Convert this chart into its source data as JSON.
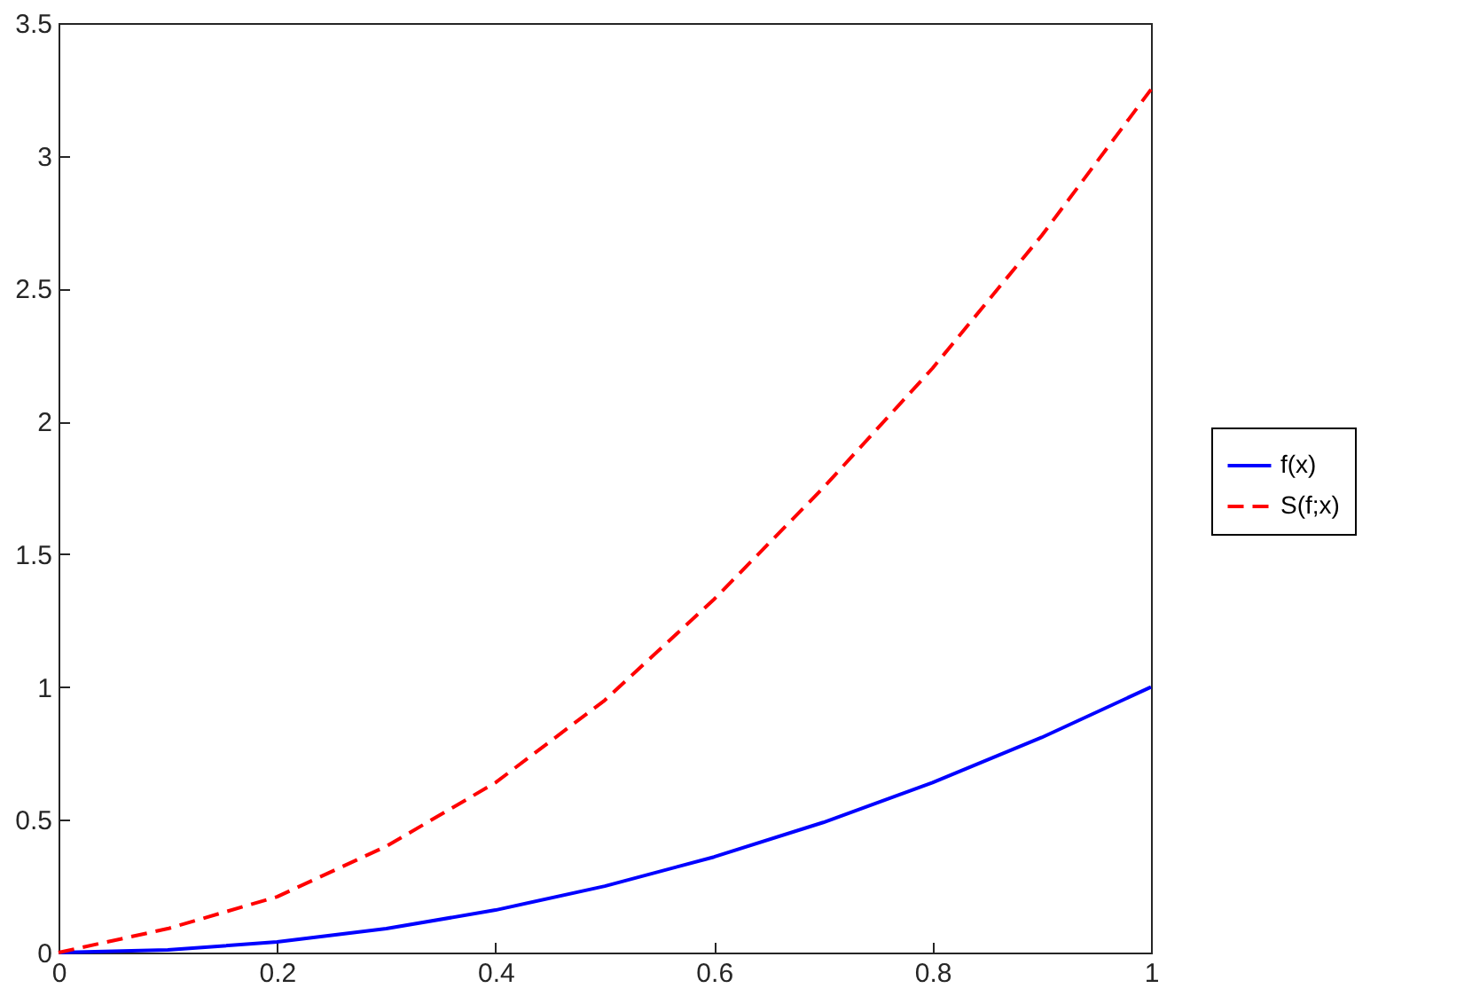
{
  "chart_data": {
    "type": "line",
    "x": [
      0,
      0.1,
      0.2,
      0.3,
      0.4,
      0.5,
      0.6,
      0.7,
      0.8,
      0.9,
      1
    ],
    "series": [
      {
        "name": "f(x)",
        "color": "#0000ff",
        "line_style": "solid",
        "values": [
          0,
          0.01,
          0.04,
          0.09,
          0.16,
          0.25,
          0.36,
          0.49,
          0.64,
          0.81,
          1
        ]
      },
      {
        "name": "S(f;x)",
        "color": "#ff0000",
        "line_style": "dashed",
        "values": [
          0,
          0.09,
          0.21,
          0.4,
          0.64,
          0.95,
          1.33,
          1.75,
          2.2,
          2.7,
          3.25
        ]
      }
    ],
    "xlim": [
      0,
      1
    ],
    "xticks": [
      0,
      0.2,
      0.4,
      0.6,
      0.8,
      1
    ],
    "ylim": [
      0,
      3.5
    ],
    "yticks": [
      0,
      0.5,
      1,
      1.5,
      2,
      2.5,
      3,
      3.5
    ],
    "grid": false,
    "legend": "right"
  }
}
